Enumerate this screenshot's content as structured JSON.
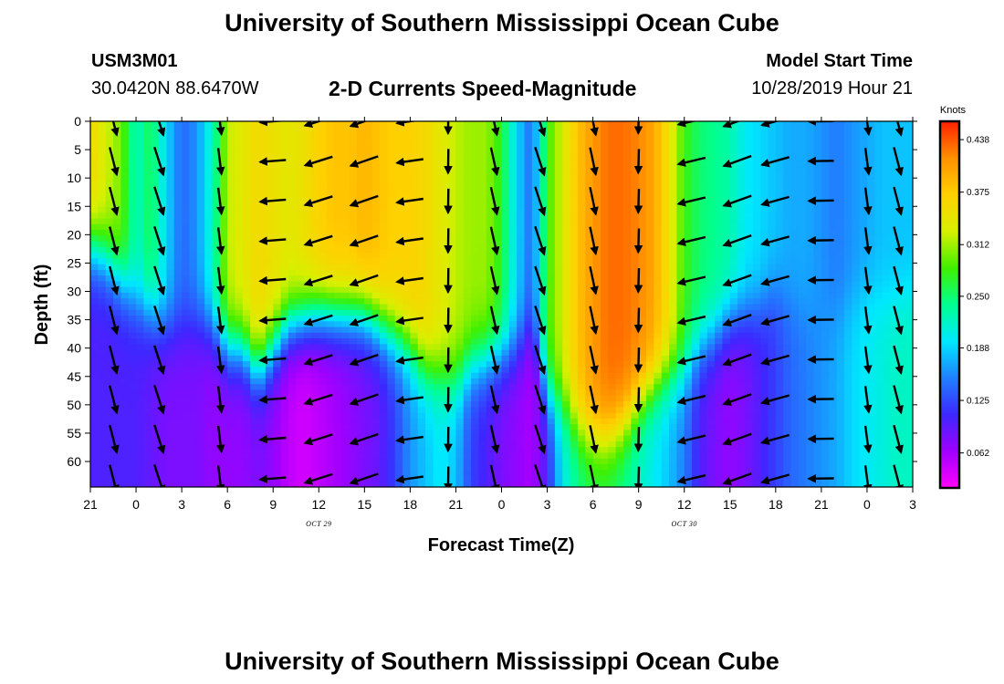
{
  "header": {
    "title": "University of Southern Mississippi Ocean Cube",
    "station_id": "USM3M01",
    "location": "30.0420N 88.6470W",
    "subtitle": "2-D Currents Speed-Magnitude",
    "model_label": "Model Start Time",
    "model_time": "10/28/2019 Hour 21"
  },
  "footer": {
    "title": "University of Southern Mississippi Ocean Cube"
  },
  "chart_data": {
    "type": "heatmap",
    "title": "2-D Currents Speed-Magnitude",
    "xlabel": "Forecast Time(Z)",
    "ylabel": "Depth (ft)",
    "x_tick_labels": [
      "21",
      "0",
      "3",
      "6",
      "9",
      "12",
      "15",
      "18",
      "21",
      "0",
      "3",
      "6",
      "9",
      "12",
      "15",
      "18",
      "21",
      "0",
      "3"
    ],
    "x_range_hours": [
      0,
      54
    ],
    "date_labels": [
      {
        "text": "OCT 29",
        "hour": 15
      },
      {
        "text": "OCT 30",
        "hour": 39
      }
    ],
    "y_ticks": [
      0,
      5,
      10,
      15,
      20,
      25,
      30,
      35,
      40,
      45,
      50,
      55,
      60
    ],
    "y_range_ft": [
      0,
      64.5
    ],
    "y_inverted": true,
    "colorbar": {
      "unit": "Knots",
      "ticks": [
        "0.438",
        "0.375",
        "0.312",
        "0.250",
        "0.188",
        "0.125",
        "0.062"
      ],
      "range": [
        0.02,
        0.46
      ],
      "colors": [
        "#ff00ff",
        "#a000ff",
        "#3c28ff",
        "#2080ff",
        "#00e8ff",
        "#00ff90",
        "#40f000",
        "#d8f000",
        "#ffd000",
        "#ff9000",
        "#ff2000"
      ],
      "placement": "right"
    },
    "profile_speed_knots": {
      "hours": [
        0,
        1,
        2,
        3,
        4,
        5,
        6,
        7,
        8,
        9,
        10,
        11,
        12,
        13,
        14,
        15,
        16,
        17,
        18,
        19,
        20,
        21,
        22,
        23,
        24,
        25,
        26,
        27,
        28,
        29,
        30,
        31,
        32,
        33,
        34,
        35,
        36,
        37,
        38,
        39,
        40,
        41,
        42,
        43,
        44,
        45,
        46,
        47,
        48,
        49,
        50,
        51,
        52,
        53,
        54
      ],
      "surface": [
        0.36,
        0.33,
        0.3,
        0.22,
        0.26,
        0.19,
        0.14,
        0.16,
        0.22,
        0.32,
        0.34,
        0.36,
        0.35,
        0.34,
        0.35,
        0.37,
        0.38,
        0.38,
        0.39,
        0.38,
        0.37,
        0.37,
        0.36,
        0.34,
        0.32,
        0.31,
        0.31,
        0.27,
        0.19,
        0.14,
        0.28,
        0.33,
        0.38,
        0.41,
        0.43,
        0.43,
        0.42,
        0.4,
        0.35,
        0.28,
        0.25,
        0.24,
        0.23,
        0.2,
        0.19,
        0.18,
        0.17,
        0.17,
        0.16,
        0.15,
        0.16,
        0.17,
        0.18,
        0.18,
        0.18
      ],
      "thermocline_depth_ft": [
        22,
        24,
        28,
        32,
        34,
        36,
        36,
        35,
        36,
        40,
        40,
        44,
        40,
        36,
        35,
        34,
        34,
        34,
        34,
        36,
        38,
        40,
        44,
        45,
        46,
        43,
        42,
        41,
        40,
        36,
        48,
        50,
        54,
        56,
        56,
        54,
        50,
        47,
        45,
        44,
        40,
        38,
        35,
        34,
        33,
        30,
        32,
        34,
        34,
        34,
        32,
        30,
        31,
        31,
        30
      ],
      "deep": [
        0.1,
        0.1,
        0.1,
        0.1,
        0.09,
        0.08,
        0.08,
        0.08,
        0.07,
        0.07,
        0.07,
        0.08,
        0.07,
        0.05,
        0.04,
        0.05,
        0.06,
        0.07,
        0.08,
        0.09,
        0.12,
        0.16,
        0.18,
        0.2,
        0.18,
        0.12,
        0.1,
        0.08,
        0.07,
        0.06,
        0.1,
        0.2,
        0.24,
        0.26,
        0.26,
        0.24,
        0.22,
        0.2,
        0.18,
        0.15,
        0.1,
        0.08,
        0.07,
        0.08,
        0.1,
        0.12,
        0.14,
        0.15,
        0.16,
        0.17,
        0.19,
        0.2,
        0.21,
        0.22,
        0.22
      ]
    },
    "arrow_grid": {
      "hours": [
        1.5,
        4.5,
        8.5,
        12,
        15,
        18,
        21,
        23.5,
        26.5,
        29.5,
        33,
        36,
        39.5,
        42.5,
        45,
        48,
        51,
        53
      ],
      "depths_ft": [
        0,
        7,
        14,
        21,
        28,
        35,
        42,
        49,
        56,
        63
      ]
    }
  }
}
